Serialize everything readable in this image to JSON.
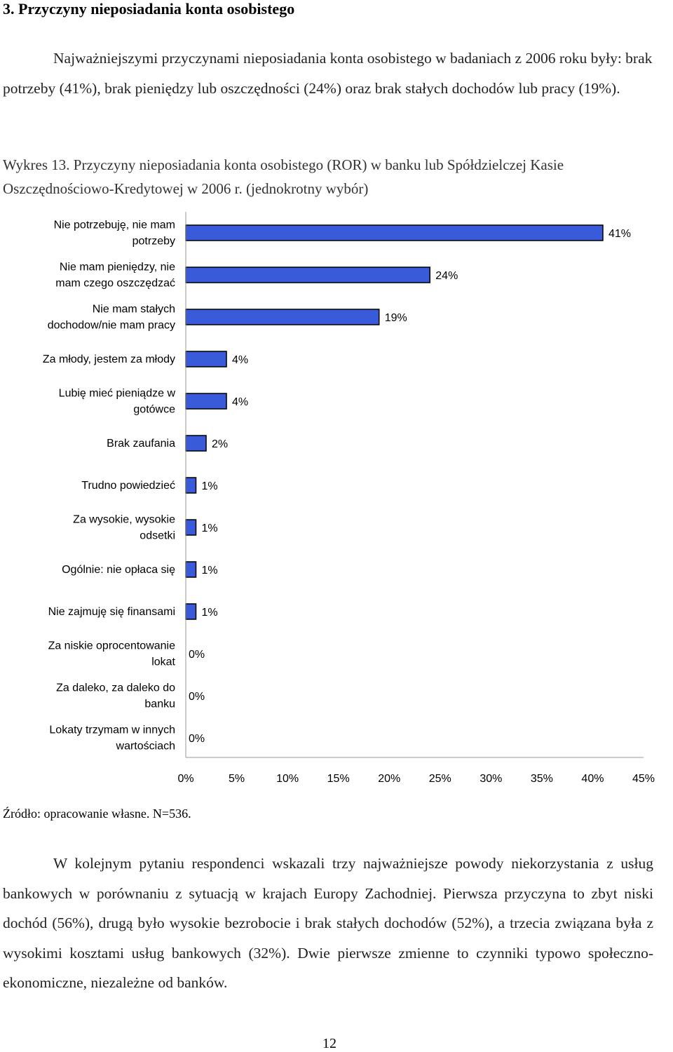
{
  "heading": "3.  Przyczyny nieposiadania konta osobistego",
  "intro": "Najważniejszymi przyczynami nieposiadania konta osobistego w badaniach z 2006 roku były: brak potrzeby (41%), brak pieniędzy lub oszczędności (24%) oraz brak stałych dochodów lub pracy (19%).",
  "caption": "Wykres 13. Przyczyny nieposiadania konta osobistego (ROR) w banku lub Spółdzielczej Kasie Oszczędnościowo-Kredytowej w 2006 r. (jednokrotny wybór)",
  "chart_data": {
    "type": "bar",
    "orientation": "horizontal",
    "categories": [
      [
        "Nie potrzebuję, nie mam",
        "potrzeby"
      ],
      [
        "Nie mam pieniędzy, nie",
        "mam czego oszczędzać"
      ],
      [
        "Nie mam stałych",
        "dochodow/nie mam pracy"
      ],
      [
        "Za młody, jestem za młody"
      ],
      [
        "Lubię mieć pieniądze w",
        "gotówce"
      ],
      [
        "Brak zaufania"
      ],
      [
        "Trudno powiedzieć"
      ],
      [
        "Za wysokie, wysokie",
        "odsetki"
      ],
      [
        "Ogólnie: nie opłaca się"
      ],
      [
        "Nie zajmuję się finansami"
      ],
      [
        "Za niskie oprocentowanie",
        "lokat"
      ],
      [
        "Za daleko, za daleko do",
        "banku"
      ],
      [
        "Lokaty trzymam w innych",
        "wartościach"
      ]
    ],
    "values": [
      41,
      24,
      19,
      4,
      4,
      2,
      1,
      1,
      1,
      1,
      0,
      0,
      0
    ],
    "value_labels": [
      "41%",
      "24%",
      "19%",
      "4%",
      "4%",
      "2%",
      "1%",
      "1%",
      "1%",
      "1%",
      "0%",
      "0%",
      "0%"
    ],
    "xlim": [
      0,
      45
    ],
    "xticks": [
      "0%",
      "5%",
      "10%",
      "15%",
      "20%",
      "25%",
      "30%",
      "35%",
      "40%",
      "45%"
    ],
    "bar_color": "#3a5bd9",
    "grid": false,
    "legend": "none"
  },
  "source": "Źródło: opracowanie własne. N=536.",
  "para2": "W kolejnym pytaniu respondenci wskazali trzy najważniejsze powody niekorzystania z usług bankowych w porównaniu z sytuacją w krajach Europy Zachodniej. Pierwsza przyczyna to zbyt niski dochód (56%), drugą było wysokie bezrobocie i brak stałych dochodów (52%), a trzecia związana była z wysokimi kosztami usług bankowych (32%). Dwie pierwsze zmienne to czynniki typowo społeczno-ekonomiczne, niezależne od banków.",
  "page_number": "12"
}
